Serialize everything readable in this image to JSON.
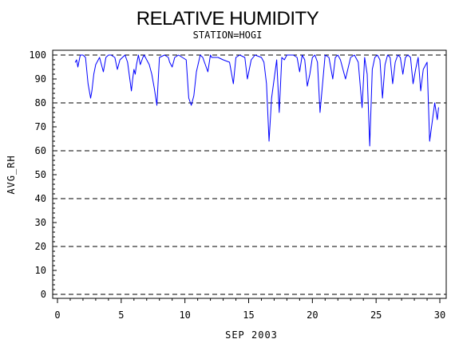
{
  "chart_data": {
    "type": "line",
    "title": "RELATIVE HUMIDITY",
    "subtitle": "STATION=HOGI",
    "xlabel": "SEP 2003",
    "ylabel": "AVG_RH",
    "xlim": [
      0,
      30
    ],
    "ylim": [
      0,
      100
    ],
    "x_ticks": [
      0,
      5,
      10,
      15,
      20,
      25,
      30
    ],
    "y_ticks": [
      0,
      10,
      20,
      30,
      40,
      50,
      60,
      70,
      80,
      90,
      100
    ],
    "dashed_gridlines_y": [
      0,
      20,
      40,
      60,
      80,
      100
    ],
    "line_color": "#0000ff",
    "series": [
      {
        "x": [
          1.4,
          1.5,
          1.6,
          1.75,
          1.8,
          2.0,
          2.2,
          2.4,
          2.6,
          2.7,
          2.85,
          3.0,
          3.3,
          3.6,
          3.8,
          4.0,
          4.2,
          4.5,
          4.7,
          4.9,
          5.3,
          5.5,
          5.8,
          5.9,
          6.0,
          6.1,
          6.2,
          6.35,
          6.5,
          6.7,
          6.8,
          7.0,
          7.2,
          7.4,
          7.6,
          7.8,
          8.0,
          8.4,
          8.7,
          8.8,
          9.0,
          9.2,
          9.5,
          9.8,
          10.1,
          10.3,
          10.5,
          10.7,
          10.9,
          11.2,
          11.4,
          11.6,
          11.8,
          12.0,
          12.1,
          12.3,
          12.6,
          13.0,
          13.5,
          13.8,
          14.0,
          14.3,
          14.7,
          14.9,
          15.2,
          15.5,
          16.0,
          16.2,
          16.4,
          16.6,
          16.8,
          17.0,
          17.2,
          17.4,
          17.6,
          17.8,
          18.0,
          18.5,
          18.8,
          19.0,
          19.2,
          19.4,
          19.6,
          19.8,
          20.0,
          20.2,
          20.4,
          20.6,
          20.8,
          21.0,
          21.3,
          21.6,
          21.8,
          22.0,
          22.2,
          22.6,
          23.0,
          23.3,
          23.6,
          23.9,
          24.1,
          24.3,
          24.5,
          24.7,
          24.9,
          25.1,
          25.3,
          25.5,
          25.7,
          25.9,
          26.1,
          26.3,
          26.5,
          26.7,
          26.9,
          27.1,
          27.3,
          27.5,
          27.7,
          27.9,
          28.1,
          28.3,
          28.5,
          28.7,
          29.0,
          29.2,
          29.4,
          29.6,
          29.8,
          29.9
        ],
        "y": [
          97,
          98,
          95,
          99,
          100,
          100,
          99,
          88,
          82,
          85,
          92,
          96,
          99,
          93,
          99,
          100,
          100,
          99,
          94,
          98,
          100,
          97,
          85,
          90,
          94,
          92,
          96,
          100,
          96,
          99,
          100,
          98,
          96,
          92,
          86,
          79,
          99,
          100,
          99,
          97,
          95,
          99,
          100,
          99,
          98,
          82,
          79,
          83,
          93,
          100,
          99,
          96,
          93,
          100,
          99,
          99,
          99,
          98,
          97,
          88,
          99,
          100,
          99,
          90,
          98,
          100,
          99,
          97,
          88,
          64,
          82,
          90,
          98,
          76,
          99,
          98,
          100,
          100,
          99,
          93,
          100,
          98,
          87,
          92,
          99,
          100,
          97,
          76,
          88,
          100,
          99,
          90,
          99,
          100,
          98,
          90,
          99,
          100,
          97,
          78,
          99,
          92,
          62,
          94,
          99,
          100,
          98,
          82,
          96,
          100,
          99,
          88,
          97,
          100,
          99,
          92,
          99,
          100,
          99,
          88,
          94,
          99,
          85,
          94,
          97,
          64,
          72,
          80,
          73,
          78
        ]
      }
    ]
  }
}
